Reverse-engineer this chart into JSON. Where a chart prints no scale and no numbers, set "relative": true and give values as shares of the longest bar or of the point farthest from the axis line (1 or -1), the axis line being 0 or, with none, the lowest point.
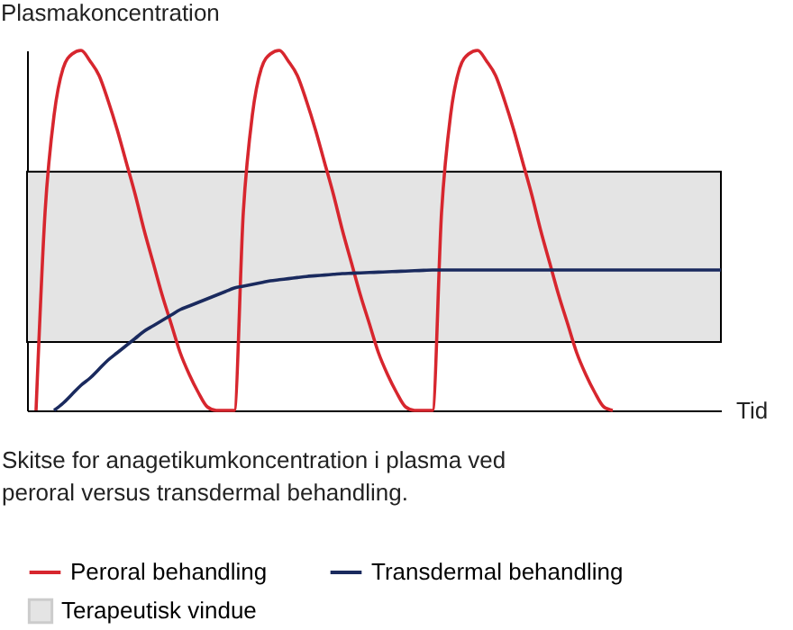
{
  "chart_data": {
    "type": "line",
    "relative": true,
    "xlabel": "Tid",
    "ylabel": "Plasmakoncentration",
    "annotations": [
      "Skitse for anagetikumkoncentration i plasma ved peroral versus transdermal behandling."
    ],
    "categories": [
      null,
      null,
      null,
      null,
      null,
      null,
      null,
      null,
      null,
      null,
      null,
      null,
      null,
      null,
      null,
      null,
      null,
      null,
      null,
      null,
      null,
      null,
      null,
      null,
      null,
      null,
      null,
      null,
      null,
      null,
      null,
      null,
      null,
      null,
      null,
      null,
      null,
      null,
      null,
      null,
      null,
      null,
      null,
      null,
      null,
      null,
      null,
      null,
      null,
      null,
      null,
      null,
      null,
      null,
      null,
      null,
      null,
      null,
      null,
      null,
      null,
      null,
      null,
      null,
      null,
      null,
      null,
      null,
      null,
      null,
      null,
      null,
      null,
      null,
      null,
      null,
      null,
      null
    ],
    "series": [
      {
        "name": "Peroral behandling",
        "color": "#d7262e",
        "values": [
          null,
          0,
          0.55,
          0.82,
          0.95,
          0.99,
          1,
          0.97,
          0.93,
          0.86,
          0.78,
          0.69,
          0.6,
          0.5,
          0.41,
          0.32,
          0.24,
          0.16,
          0.1,
          0.05,
          0.01,
          0,
          0,
          0,
          0.55,
          0.82,
          0.95,
          0.99,
          1,
          0.97,
          0.93,
          0.86,
          0.78,
          0.69,
          0.6,
          0.5,
          0.41,
          0.32,
          0.24,
          0.16,
          0.1,
          0.05,
          0.01,
          0,
          0,
          0,
          0.55,
          0.82,
          0.95,
          0.99,
          1,
          0.97,
          0.93,
          0.86,
          0.78,
          0.69,
          0.6,
          0.5,
          0.41,
          0.32,
          0.24,
          0.16,
          0.1,
          0.05,
          0.01,
          0,
          null,
          null,
          null,
          null,
          null,
          null,
          null,
          null,
          null,
          null,
          null,
          null
        ]
      },
      {
        "name": "Transdermal behandling",
        "color": "#1a2a5e",
        "values": [
          null,
          null,
          null,
          0,
          0.02,
          0.045,
          0.07,
          0.09,
          0.115,
          0.14,
          0.16,
          0.18,
          0.2,
          0.22,
          0.235,
          0.25,
          0.265,
          0.28,
          0.29,
          0.3,
          0.31,
          0.32,
          0.33,
          0.34,
          0.345,
          0.35,
          0.355,
          0.36,
          0.363,
          0.366,
          0.369,
          0.372,
          0.374,
          0.376,
          0.378,
          0.38,
          0.381,
          0.382,
          0.383,
          0.384,
          0.385,
          0.386,
          0.387,
          0.388,
          0.389,
          0.39,
          0.39,
          0.39,
          0.39,
          0.39,
          0.39,
          0.39,
          0.39,
          0.39,
          0.39,
          0.39,
          0.39,
          0.39,
          0.39,
          0.39,
          0.39,
          0.39,
          0.39,
          0.39,
          0.39,
          0.39,
          0.39,
          0.39,
          0.39,
          0.39,
          0.39,
          0.39,
          0.39,
          0.39,
          0.39,
          0.39,
          0.39,
          0.39
        ]
      }
    ],
    "bands": [
      {
        "axis": "y",
        "from": 0.19,
        "to": 0.663,
        "label": "Terapeutisk vindue",
        "color": "#e4e4e4"
      }
    ],
    "legend": "bottom",
    "grid": false
  }
}
